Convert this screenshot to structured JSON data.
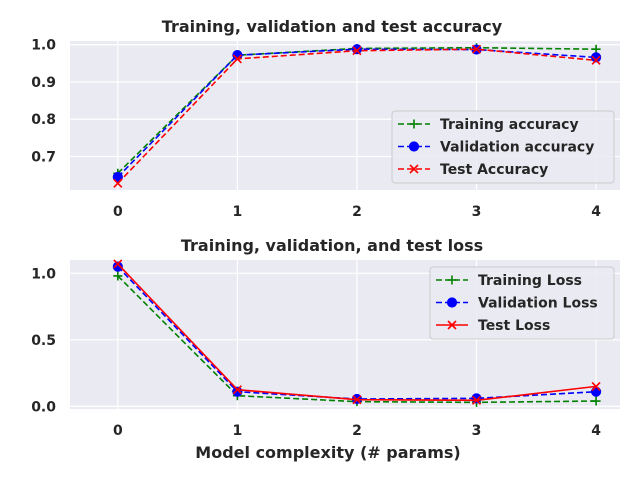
{
  "chart_data": [
    {
      "type": "line",
      "title": "Training, validation and test accuracy",
      "xlabel": "",
      "ylabel": "",
      "x": [
        0,
        1,
        2,
        3,
        4
      ],
      "xticks": [
        "0",
        "1",
        "2",
        "3",
        "4"
      ],
      "yticks": [
        "0.7",
        "0.8",
        "0.9",
        "1.0"
      ],
      "ylim": [
        0.61,
        1.01
      ],
      "legend": "lower-right",
      "grid": true,
      "series": [
        {
          "name": "Training accuracy",
          "values": [
            0.655,
            0.972,
            0.99,
            0.992,
            0.988
          ],
          "color": "#008000",
          "linestyle": "dashed",
          "marker": "plus"
        },
        {
          "name": "Validation accuracy",
          "values": [
            0.645,
            0.972,
            0.988,
            0.987,
            0.966
          ],
          "color": "#0000ff",
          "linestyle": "dashed",
          "marker": "circle"
        },
        {
          "name": "Test Accuracy",
          "values": [
            0.628,
            0.962,
            0.984,
            0.988,
            0.958
          ],
          "color": "#ff0000",
          "linestyle": "dashed",
          "marker": "x"
        }
      ]
    },
    {
      "type": "line",
      "title": "Training, validation, and test loss",
      "xlabel": "Model complexity (# params)",
      "ylabel": "",
      "x": [
        0,
        1,
        2,
        3,
        4
      ],
      "xticks": [
        "0",
        "1",
        "2",
        "3",
        "4"
      ],
      "yticks": [
        "0.0",
        "0.5",
        "1.0"
      ],
      "ylim": [
        -0.02,
        1.1
      ],
      "legend": "upper-right",
      "grid": true,
      "series": [
        {
          "name": "Training Loss",
          "values": [
            0.98,
            0.08,
            0.035,
            0.03,
            0.04
          ],
          "color": "#008000",
          "linestyle": "dashed",
          "marker": "plus"
        },
        {
          "name": "Validation Loss",
          "values": [
            1.05,
            0.11,
            0.055,
            0.06,
            0.11
          ],
          "color": "#0000ff",
          "linestyle": "dashed",
          "marker": "circle"
        },
        {
          "name": "Test Loss",
          "values": [
            1.07,
            0.125,
            0.05,
            0.045,
            0.15
          ],
          "color": "#ff0000",
          "linestyle": "solid",
          "marker": "x"
        }
      ]
    }
  ]
}
